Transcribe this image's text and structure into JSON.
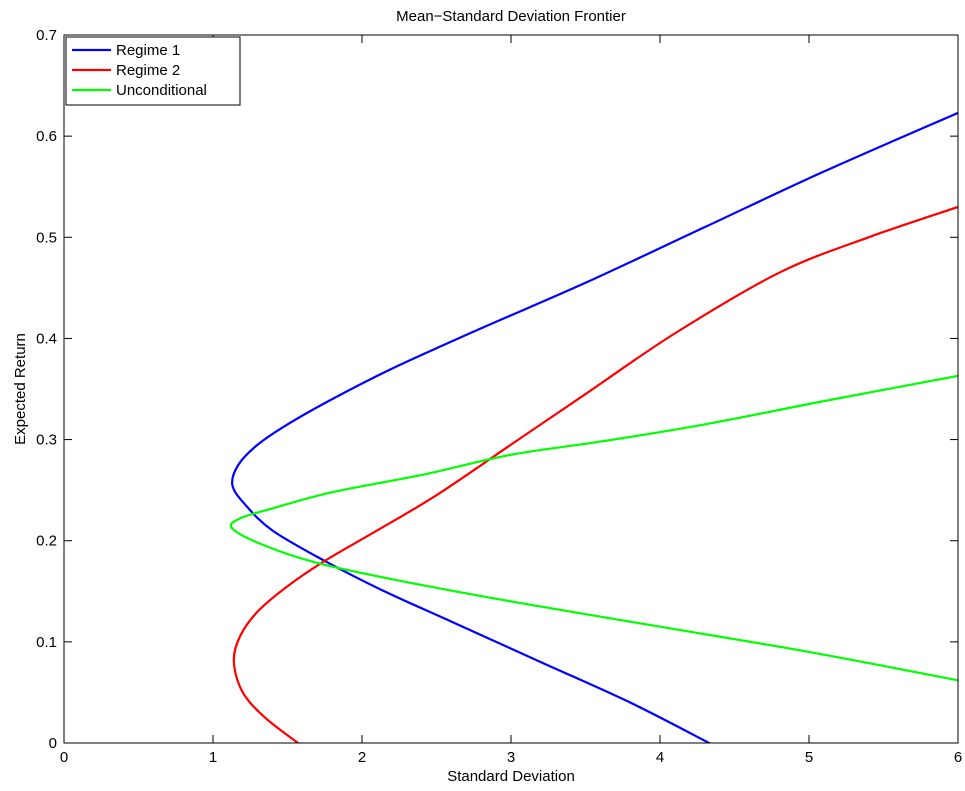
{
  "chart_data": {
    "type": "line",
    "title": "Mean−Standard Deviation Frontier",
    "xlabel": "Standard Deviation",
    "ylabel": "Expected Return",
    "xlim": [
      0,
      6
    ],
    "ylim": [
      0,
      0.7
    ],
    "xticks": [
      "0",
      "1",
      "2",
      "3",
      "4",
      "5",
      "6"
    ],
    "yticks": [
      "0",
      "0.1",
      "0.2",
      "0.3",
      "0.4",
      "0.5",
      "0.6",
      "0.7"
    ],
    "grid": false,
    "legend_position": "top-left",
    "series": [
      {
        "name": "Regime 1",
        "color": "#0000ff",
        "points": [
          [
            4.33,
            0.0
          ],
          [
            3.8,
            0.04
          ],
          [
            3.2,
            0.08
          ],
          [
            2.6,
            0.12
          ],
          [
            2.15,
            0.15
          ],
          [
            1.75,
            0.18
          ],
          [
            1.4,
            0.21
          ],
          [
            1.22,
            0.235
          ],
          [
            1.13,
            0.255
          ],
          [
            1.17,
            0.275
          ],
          [
            1.3,
            0.295
          ],
          [
            1.5,
            0.315
          ],
          [
            1.8,
            0.34
          ],
          [
            2.2,
            0.37
          ],
          [
            2.8,
            0.41
          ],
          [
            3.5,
            0.455
          ],
          [
            4.3,
            0.51
          ],
          [
            5.1,
            0.565
          ],
          [
            6.0,
            0.623
          ]
        ]
      },
      {
        "name": "Regime 2",
        "color": "#ff0000",
        "points": [
          [
            1.57,
            0.0
          ],
          [
            1.35,
            0.025
          ],
          [
            1.2,
            0.05
          ],
          [
            1.14,
            0.08
          ],
          [
            1.18,
            0.105
          ],
          [
            1.3,
            0.13
          ],
          [
            1.5,
            0.155
          ],
          [
            1.75,
            0.18
          ],
          [
            2.1,
            0.21
          ],
          [
            2.5,
            0.245
          ],
          [
            3.0,
            0.295
          ],
          [
            3.5,
            0.345
          ],
          [
            4.1,
            0.405
          ],
          [
            4.8,
            0.465
          ],
          [
            5.4,
            0.5
          ],
          [
            6.0,
            0.53
          ]
        ]
      },
      {
        "name": "Unconditional",
        "color": "#00ff00",
        "points": [
          [
            6.0,
            0.062
          ],
          [
            5.0,
            0.09
          ],
          [
            4.0,
            0.115
          ],
          [
            3.0,
            0.14
          ],
          [
            2.2,
            0.162
          ],
          [
            1.7,
            0.178
          ],
          [
            1.35,
            0.195
          ],
          [
            1.13,
            0.212
          ],
          [
            1.18,
            0.222
          ],
          [
            1.4,
            0.232
          ],
          [
            1.8,
            0.248
          ],
          [
            2.4,
            0.265
          ],
          [
            3.0,
            0.285
          ],
          [
            3.6,
            0.298
          ],
          [
            4.3,
            0.315
          ],
          [
            5.1,
            0.338
          ],
          [
            6.0,
            0.363
          ]
        ]
      }
    ]
  }
}
